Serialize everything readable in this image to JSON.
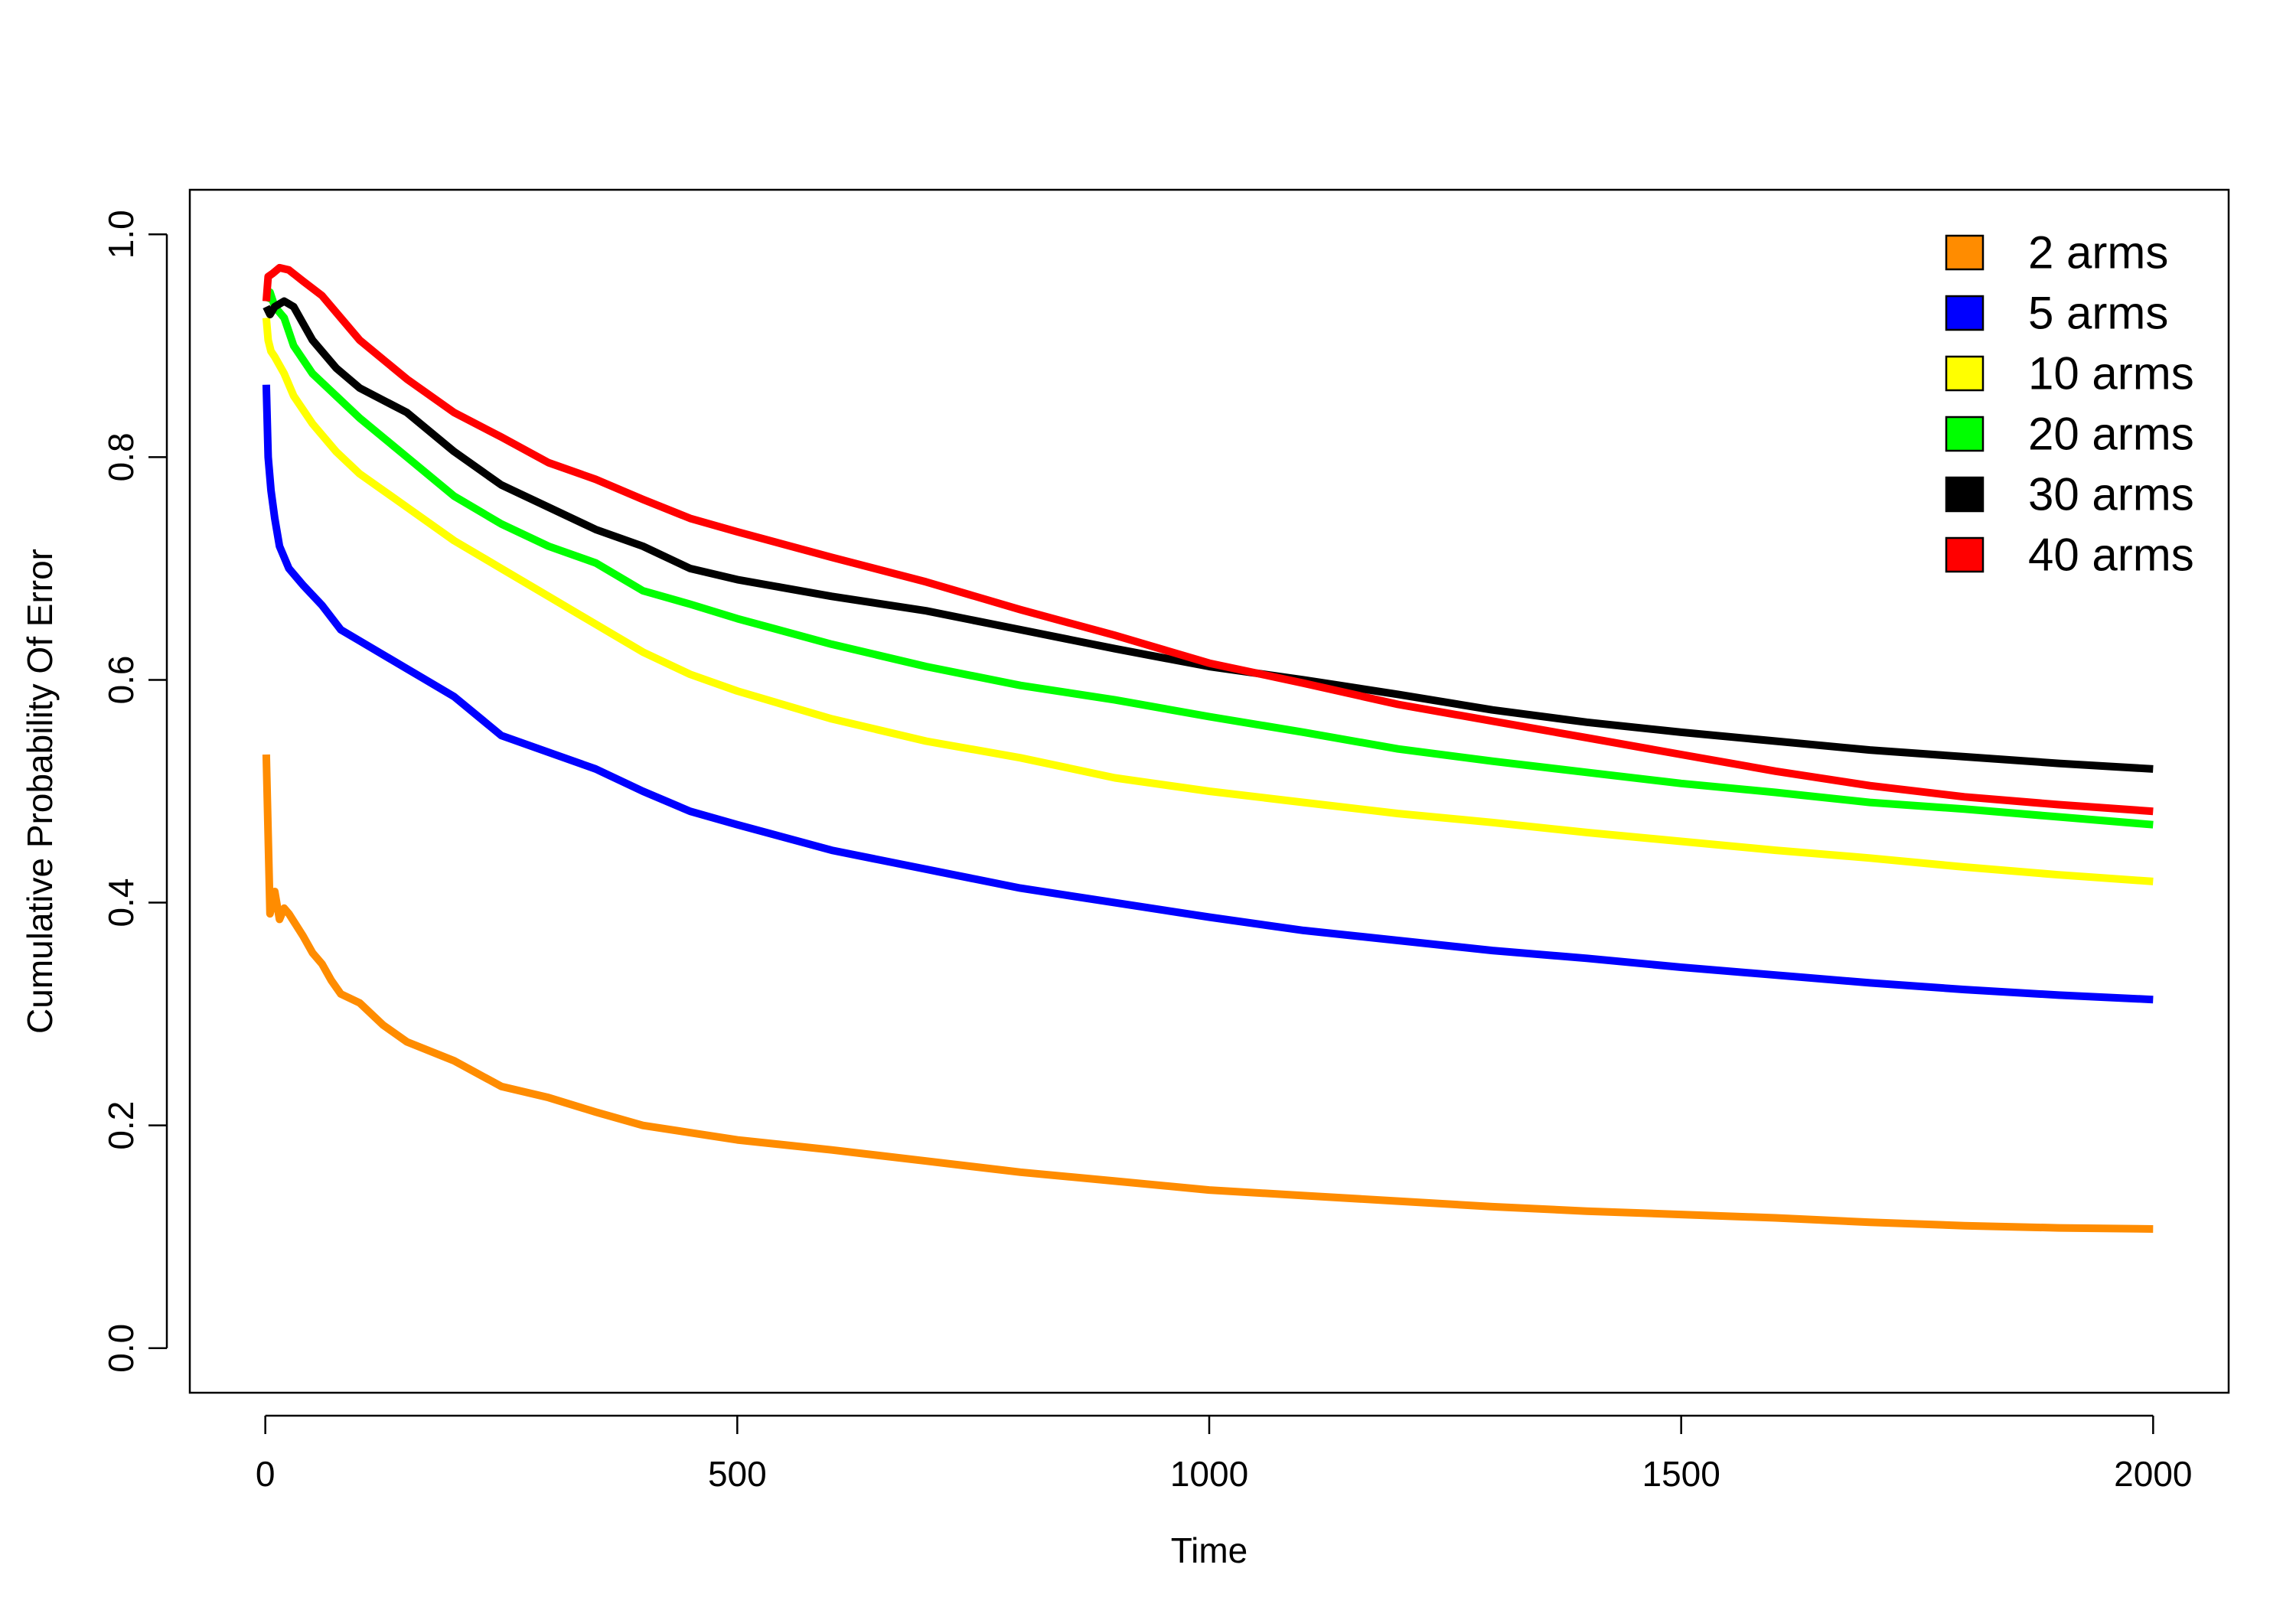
{
  "chart_data": {
    "type": "line",
    "title": "",
    "xlabel": "Time",
    "ylabel": "Cumulative Probability Of Error",
    "xlim": [
      -80,
      2080
    ],
    "ylim": [
      -0.04,
      1.04
    ],
    "x_ticks": [
      0,
      500,
      1000,
      1500,
      2000
    ],
    "x_tick_labels": [
      "0",
      "500",
      "1000",
      "1500",
      "2000"
    ],
    "y_ticks": [
      0.0,
      0.2,
      0.4,
      0.6,
      0.8,
      1.0
    ],
    "y_tick_labels": [
      "0.0",
      "0.2",
      "0.4",
      "0.6",
      "0.8",
      "1.0"
    ],
    "grid": false,
    "legend_position": "top-right",
    "series": [
      {
        "name": "2 arms",
        "color": "#FF8C00",
        "points": [
          [
            1,
            0.533
          ],
          [
            3,
            0.46
          ],
          [
            5,
            0.39
          ],
          [
            10,
            0.41
          ],
          [
            15,
            0.385
          ],
          [
            20,
            0.395
          ],
          [
            25,
            0.39
          ],
          [
            40,
            0.37
          ],
          [
            50,
            0.355
          ],
          [
            60,
            0.345
          ],
          [
            70,
            0.33
          ],
          [
            80,
            0.318
          ],
          [
            100,
            0.31
          ],
          [
            125,
            0.29
          ],
          [
            150,
            0.275
          ],
          [
            200,
            0.258
          ],
          [
            250,
            0.235
          ],
          [
            300,
            0.225
          ],
          [
            350,
            0.212
          ],
          [
            400,
            0.2
          ],
          [
            500,
            0.187
          ],
          [
            600,
            0.178
          ],
          [
            700,
            0.168
          ],
          [
            800,
            0.158
          ],
          [
            900,
            0.15
          ],
          [
            1000,
            0.142
          ],
          [
            1100,
            0.137
          ],
          [
            1200,
            0.132
          ],
          [
            1300,
            0.127
          ],
          [
            1400,
            0.123
          ],
          [
            1500,
            0.12
          ],
          [
            1600,
            0.117
          ],
          [
            1700,
            0.113
          ],
          [
            1800,
            0.11
          ],
          [
            1900,
            0.108
          ],
          [
            2000,
            0.107
          ]
        ]
      },
      {
        "name": "5 arms",
        "color": "#0000FF",
        "points": [
          [
            1,
            0.865
          ],
          [
            3,
            0.8
          ],
          [
            6,
            0.77
          ],
          [
            10,
            0.745
          ],
          [
            15,
            0.72
          ],
          [
            25,
            0.7
          ],
          [
            40,
            0.685
          ],
          [
            60,
            0.667
          ],
          [
            80,
            0.645
          ],
          [
            100,
            0.635
          ],
          [
            150,
            0.61
          ],
          [
            200,
            0.585
          ],
          [
            250,
            0.55
          ],
          [
            300,
            0.535
          ],
          [
            350,
            0.52
          ],
          [
            400,
            0.5
          ],
          [
            450,
            0.482
          ],
          [
            500,
            0.47
          ],
          [
            600,
            0.447
          ],
          [
            700,
            0.43
          ],
          [
            800,
            0.413
          ],
          [
            900,
            0.4
          ],
          [
            1000,
            0.387
          ],
          [
            1100,
            0.375
          ],
          [
            1200,
            0.366
          ],
          [
            1300,
            0.357
          ],
          [
            1400,
            0.35
          ],
          [
            1500,
            0.342
          ],
          [
            1600,
            0.335
          ],
          [
            1700,
            0.328
          ],
          [
            1800,
            0.322
          ],
          [
            1900,
            0.317
          ],
          [
            2000,
            0.313
          ]
        ]
      },
      {
        "name": "10 arms",
        "color": "#FFFF00",
        "points": [
          [
            1,
            0.925
          ],
          [
            3,
            0.905
          ],
          [
            6,
            0.895
          ],
          [
            10,
            0.89
          ],
          [
            20,
            0.875
          ],
          [
            30,
            0.855
          ],
          [
            50,
            0.83
          ],
          [
            75,
            0.805
          ],
          [
            100,
            0.785
          ],
          [
            150,
            0.755
          ],
          [
            200,
            0.725
          ],
          [
            250,
            0.7
          ],
          [
            300,
            0.675
          ],
          [
            350,
            0.65
          ],
          [
            400,
            0.625
          ],
          [
            450,
            0.605
          ],
          [
            500,
            0.59
          ],
          [
            600,
            0.565
          ],
          [
            700,
            0.545
          ],
          [
            800,
            0.53
          ],
          [
            900,
            0.512
          ],
          [
            1000,
            0.5
          ],
          [
            1100,
            0.49
          ],
          [
            1200,
            0.48
          ],
          [
            1300,
            0.472
          ],
          [
            1400,
            0.463
          ],
          [
            1500,
            0.455
          ],
          [
            1600,
            0.447
          ],
          [
            1700,
            0.44
          ],
          [
            1800,
            0.432
          ],
          [
            1900,
            0.425
          ],
          [
            2000,
            0.419
          ]
        ]
      },
      {
        "name": "20 arms",
        "color": "#00FF00",
        "points": [
          [
            1,
            0.94
          ],
          [
            5,
            0.948
          ],
          [
            10,
            0.935
          ],
          [
            20,
            0.925
          ],
          [
            30,
            0.9
          ],
          [
            50,
            0.875
          ],
          [
            75,
            0.855
          ],
          [
            100,
            0.835
          ],
          [
            150,
            0.8
          ],
          [
            200,
            0.765
          ],
          [
            250,
            0.74
          ],
          [
            300,
            0.72
          ],
          [
            350,
            0.705
          ],
          [
            400,
            0.68
          ],
          [
            450,
            0.668
          ],
          [
            500,
            0.655
          ],
          [
            600,
            0.632
          ],
          [
            700,
            0.612
          ],
          [
            800,
            0.595
          ],
          [
            900,
            0.582
          ],
          [
            1000,
            0.567
          ],
          [
            1100,
            0.553
          ],
          [
            1200,
            0.538
          ],
          [
            1300,
            0.527
          ],
          [
            1400,
            0.517
          ],
          [
            1500,
            0.507
          ],
          [
            1600,
            0.499
          ],
          [
            1700,
            0.49
          ],
          [
            1800,
            0.484
          ],
          [
            1900,
            0.477
          ],
          [
            2000,
            0.47
          ]
        ]
      },
      {
        "name": "30 arms",
        "color": "#000000",
        "points": [
          [
            1,
            0.935
          ],
          [
            5,
            0.928
          ],
          [
            10,
            0.935
          ],
          [
            20,
            0.94
          ],
          [
            30,
            0.935
          ],
          [
            40,
            0.92
          ],
          [
            50,
            0.905
          ],
          [
            75,
            0.88
          ],
          [
            100,
            0.862
          ],
          [
            150,
            0.84
          ],
          [
            200,
            0.805
          ],
          [
            250,
            0.775
          ],
          [
            300,
            0.755
          ],
          [
            350,
            0.735
          ],
          [
            400,
            0.72
          ],
          [
            450,
            0.7
          ],
          [
            500,
            0.69
          ],
          [
            600,
            0.675
          ],
          [
            700,
            0.662
          ],
          [
            800,
            0.645
          ],
          [
            900,
            0.628
          ],
          [
            1000,
            0.612
          ],
          [
            1100,
            0.6
          ],
          [
            1200,
            0.587
          ],
          [
            1300,
            0.573
          ],
          [
            1400,
            0.562
          ],
          [
            1500,
            0.553
          ],
          [
            1600,
            0.545
          ],
          [
            1700,
            0.537
          ],
          [
            1800,
            0.531
          ],
          [
            1900,
            0.525
          ],
          [
            2000,
            0.52
          ]
        ]
      },
      {
        "name": "40 arms",
        "color": "#FF0000",
        "points": [
          [
            1,
            0.94
          ],
          [
            3,
            0.962
          ],
          [
            8,
            0.965
          ],
          [
            15,
            0.97
          ],
          [
            25,
            0.968
          ],
          [
            40,
            0.958
          ],
          [
            60,
            0.945
          ],
          [
            80,
            0.925
          ],
          [
            100,
            0.905
          ],
          [
            150,
            0.87
          ],
          [
            200,
            0.84
          ],
          [
            250,
            0.818
          ],
          [
            300,
            0.795
          ],
          [
            350,
            0.78
          ],
          [
            400,
            0.762
          ],
          [
            450,
            0.745
          ],
          [
            500,
            0.733
          ],
          [
            600,
            0.71
          ],
          [
            700,
            0.688
          ],
          [
            800,
            0.663
          ],
          [
            900,
            0.64
          ],
          [
            1000,
            0.615
          ],
          [
            1100,
            0.597
          ],
          [
            1200,
            0.578
          ],
          [
            1300,
            0.563
          ],
          [
            1400,
            0.548
          ],
          [
            1500,
            0.533
          ],
          [
            1600,
            0.518
          ],
          [
            1700,
            0.505
          ],
          [
            1800,
            0.495
          ],
          [
            1900,
            0.488
          ],
          [
            2000,
            0.482
          ]
        ]
      }
    ]
  }
}
